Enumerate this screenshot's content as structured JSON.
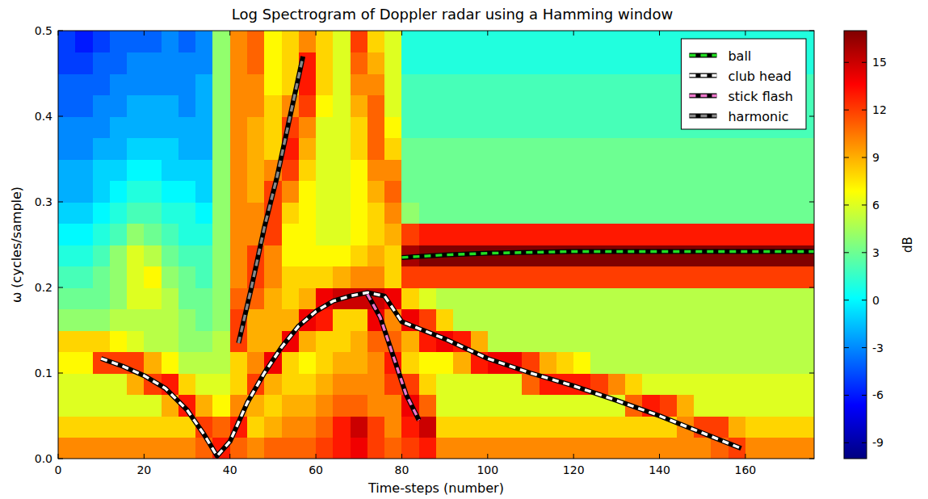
{
  "chart_data": {
    "type": "heatmap",
    "title": "Log Spectrogram of Doppler radar using a Hamming window",
    "x_label": "Time-steps (number)",
    "y_label": "ω  (cycles/sample)",
    "xlim": [
      0,
      176
    ],
    "xticks": [
      0,
      20,
      40,
      60,
      80,
      100,
      120,
      140,
      160
    ],
    "ylim": [
      0,
      0.5
    ],
    "yticks": [
      {
        "value": 0,
        "label": "0.0"
      },
      0.1,
      0.2,
      0.3,
      0.4,
      0.5
    ],
    "legend": "upper right",
    "colorbar": {
      "label": "dB",
      "range": [
        -10,
        17
      ],
      "ticks": [
        -9,
        -6,
        -3,
        0,
        3,
        6,
        9,
        12,
        15
      ]
    },
    "cells": {
      "x_bins": [
        0,
        4,
        8,
        12,
        16,
        20,
        24,
        28,
        32,
        36,
        40,
        44,
        48,
        52,
        56,
        60,
        64,
        68,
        72,
        76,
        80,
        84,
        88,
        92,
        96,
        100,
        104,
        108,
        112,
        116,
        120,
        124,
        128,
        132,
        136,
        140,
        144,
        148,
        152,
        156,
        160,
        164,
        168,
        172,
        176
      ],
      "y_bins": [
        0,
        0.025,
        0.05,
        0.075,
        0.1,
        0.125,
        0.15,
        0.175,
        0.2,
        0.225,
        0.25,
        0.275,
        0.3,
        0.325,
        0.35,
        0.375,
        0.4,
        0.425,
        0.45,
        0.475,
        0.5
      ],
      "values": [
        [
          10,
          10,
          10,
          10,
          10,
          10,
          10,
          10,
          11,
          13,
          11,
          10,
          11,
          11,
          11,
          12,
          13,
          14,
          12,
          11,
          12,
          13,
          10,
          10,
          10,
          10,
          10,
          10,
          10,
          10,
          10,
          10,
          10,
          10,
          10,
          10,
          10,
          10,
          11,
          12,
          10,
          10,
          10,
          10
        ],
        [
          8,
          8,
          8,
          8,
          8,
          8,
          8,
          8,
          12,
          11,
          13,
          8,
          9,
          10,
          10,
          11,
          13,
          15,
          12,
          10,
          13,
          15,
          8,
          8,
          8,
          8,
          8,
          8,
          8,
          8,
          8,
          8,
          8,
          8,
          8,
          8,
          10,
          12,
          12,
          9,
          8,
          8,
          8,
          8
        ],
        [
          6,
          6,
          6,
          6,
          6,
          6,
          9,
          13,
          9,
          7,
          10,
          9,
          8,
          9,
          9,
          10,
          11,
          11,
          10,
          10,
          14,
          11,
          6,
          6,
          6,
          6,
          6,
          6,
          6,
          6,
          6,
          6,
          6,
          11,
          13,
          12,
          9,
          6,
          6,
          6,
          6,
          6,
          6,
          6
        ],
        [
          6,
          6,
          6,
          6,
          9,
          12,
          13,
          8,
          6,
          6,
          8,
          12,
          9,
          8,
          8,
          9,
          10,
          10,
          10,
          12,
          12,
          8,
          6,
          6,
          6,
          6,
          6,
          11,
          13,
          13,
          13,
          12,
          10,
          8,
          6,
          6,
          6,
          6,
          6,
          6,
          6,
          6,
          6,
          6
        ],
        [
          7,
          7,
          12,
          12,
          12,
          9,
          7,
          5,
          5,
          5,
          8,
          10,
          14,
          8,
          7,
          8,
          9,
          9,
          10,
          13,
          8,
          7,
          7,
          9,
          13,
          14,
          14,
          12,
          9,
          8,
          7,
          5,
          5,
          5,
          5,
          5,
          5,
          5,
          5,
          5,
          5,
          5,
          5,
          5
        ],
        [
          8,
          8,
          8,
          7,
          6,
          5,
          5,
          4,
          4,
          5,
          12,
          9,
          9,
          14,
          9,
          8,
          8,
          9,
          11,
          11,
          9,
          13,
          14,
          13,
          9,
          5,
          5,
          5,
          5,
          5,
          5,
          5,
          5,
          5,
          5,
          5,
          5,
          5,
          5,
          5,
          5,
          5,
          5,
          5
        ],
        [
          4,
          4,
          4,
          5,
          5,
          5,
          5,
          4,
          3,
          4,
          12,
          9,
          9,
          9,
          14,
          13,
          8,
          8,
          14,
          10,
          14,
          12,
          8,
          5,
          5,
          5,
          5,
          5,
          5,
          5,
          5,
          5,
          5,
          5,
          5,
          5,
          5,
          5,
          5,
          5,
          5,
          5,
          5,
          5
        ],
        [
          3,
          3,
          3,
          4,
          6,
          6,
          5,
          3,
          3,
          4,
          11,
          11,
          9,
          8,
          9,
          14,
          15,
          15,
          15,
          14,
          8,
          6,
          5,
          5,
          5,
          5,
          5,
          5,
          5,
          5,
          5,
          5,
          5,
          5,
          5,
          5,
          5,
          5,
          5,
          5,
          5,
          5,
          5,
          5
        ],
        [
          2,
          2,
          3,
          4,
          6,
          7,
          4,
          3,
          2,
          4,
          10,
          12,
          10,
          8,
          8,
          8,
          9,
          10,
          10,
          8,
          12,
          12,
          12,
          12,
          12,
          12,
          12,
          12,
          12,
          12,
          12,
          12,
          12,
          12,
          12,
          12,
          12,
          12,
          12,
          12,
          12,
          12,
          12,
          12
        ],
        [
          1,
          1,
          2,
          4,
          6,
          5,
          3,
          2,
          2,
          4,
          10,
          12,
          10,
          7,
          7,
          7,
          7,
          8,
          9,
          8,
          16,
          17,
          17,
          17,
          17,
          17,
          17,
          17,
          17,
          17,
          17,
          17,
          17,
          17,
          17,
          17,
          17,
          17,
          17,
          17,
          17,
          17,
          17,
          17
        ],
        [
          0,
          0,
          1,
          2,
          4,
          3,
          2,
          1,
          1,
          4,
          10,
          10,
          12,
          7,
          7,
          6,
          6,
          7,
          8,
          9,
          12,
          13,
          13,
          13,
          13,
          13,
          13,
          13,
          13,
          13,
          13,
          13,
          13,
          13,
          13,
          13,
          13,
          13,
          13,
          13,
          13,
          13,
          13,
          13
        ],
        [
          -1,
          -1,
          0,
          1,
          2,
          2,
          1,
          1,
          0,
          4,
          10,
          10,
          12,
          8,
          7,
          6,
          6,
          7,
          8,
          10,
          4,
          3,
          3,
          3,
          3,
          3,
          3,
          3,
          3,
          3,
          3,
          3,
          3,
          3,
          3,
          3,
          3,
          3,
          3,
          3,
          3,
          3,
          3,
          3
        ],
        [
          -2,
          -2,
          -1,
          0,
          1,
          1,
          0,
          0,
          -1,
          4,
          10,
          9,
          12,
          10,
          7,
          6,
          6,
          7,
          9,
          11,
          3,
          3,
          3,
          3,
          3,
          3,
          3,
          3,
          3,
          3,
          3,
          3,
          3,
          3,
          3,
          3,
          3,
          3,
          3,
          3,
          3,
          3,
          3,
          3
        ],
        [
          -2,
          -2,
          -1,
          -1,
          0,
          0,
          -1,
          -1,
          -1,
          4,
          10,
          9,
          10,
          12,
          8,
          6,
          6,
          7,
          10,
          10,
          3,
          3,
          3,
          3,
          3,
          3,
          3,
          3,
          3,
          3,
          3,
          3,
          3,
          3,
          3,
          3,
          3,
          3,
          3,
          3,
          3,
          3,
          3,
          3
        ],
        [
          -3,
          -3,
          -2,
          -2,
          -1,
          -1,
          -1,
          -2,
          -2,
          4,
          10,
          9,
          8,
          13,
          9,
          6,
          6,
          8,
          11,
          8,
          3,
          3,
          3,
          3,
          3,
          3,
          3,
          3,
          3,
          3,
          3,
          3,
          3,
          3,
          3,
          3,
          3,
          3,
          3,
          3,
          3,
          3,
          3,
          3
        ],
        [
          -3,
          -3,
          -3,
          -2,
          -2,
          -2,
          -2,
          -2,
          -2,
          4,
          10,
          9,
          8,
          12,
          10,
          6,
          6,
          8,
          11,
          7,
          2,
          2,
          2,
          2,
          2,
          2,
          2,
          2,
          2,
          2,
          2,
          2,
          2,
          2,
          2,
          2,
          2,
          2,
          2,
          2,
          2,
          2,
          2,
          2
        ],
        [
          -4,
          -4,
          -3,
          -3,
          -2,
          -2,
          -2,
          -3,
          -2,
          4,
          10,
          10,
          8,
          10,
          12,
          7,
          6,
          9,
          11,
          6,
          2,
          2,
          2,
          2,
          2,
          2,
          2,
          2,
          2,
          2,
          2,
          2,
          2,
          2,
          2,
          2,
          2,
          2,
          2,
          2,
          2,
          2,
          2,
          2
        ],
        [
          -4,
          -4,
          -4,
          -3,
          -3,
          -3,
          -3,
          -3,
          -2,
          4,
          10,
          10,
          7,
          8,
          13,
          8,
          6,
          10,
          10,
          6,
          2,
          2,
          2,
          2,
          2,
          2,
          2,
          2,
          2,
          2,
          2,
          2,
          2,
          2,
          2,
          2,
          2,
          2,
          2,
          2,
          2,
          2,
          2,
          2
        ],
        [
          -5,
          -5,
          -4,
          -4,
          -3,
          -3,
          -3,
          -3,
          -3,
          4,
          10,
          11,
          7,
          8,
          13,
          8,
          6,
          11,
          9,
          6,
          1,
          1,
          1,
          1,
          1,
          1,
          1,
          1,
          1,
          1,
          1,
          1,
          1,
          1,
          1,
          1,
          1,
          1,
          1,
          1,
          1,
          1,
          1,
          1
        ],
        [
          -5,
          -6,
          -5,
          -4,
          -4,
          -4,
          -3,
          -4,
          -3,
          4,
          10,
          11,
          7,
          8,
          10,
          8,
          6,
          12,
          8,
          6,
          1,
          1,
          1,
          1,
          1,
          1,
          1,
          1,
          1,
          1,
          1,
          1,
          1,
          1,
          1,
          1,
          1,
          1,
          1,
          1,
          1,
          1,
          1,
          1
        ]
      ]
    },
    "series": [
      {
        "name": "ball",
        "color": "#22dd22",
        "line_style": "dashed",
        "x": [
          80,
          90,
          100,
          120,
          140,
          176
        ],
        "values": [
          0.235,
          0.238,
          0.24,
          0.242,
          0.242,
          0.242
        ]
      },
      {
        "name": "club head",
        "color": "#ffffff",
        "line_style": "dashed",
        "x": [
          10,
          15,
          20,
          25,
          30,
          34,
          37,
          40,
          44,
          48,
          52,
          56,
          60,
          64,
          68,
          72,
          76,
          80,
          90,
          100,
          110,
          120,
          130,
          140,
          150,
          159
        ],
        "values": [
          0.117,
          0.108,
          0.097,
          0.082,
          0.057,
          0.028,
          0.003,
          0.02,
          0.065,
          0.1,
          0.13,
          0.155,
          0.172,
          0.184,
          0.19,
          0.194,
          0.19,
          0.16,
          0.14,
          0.117,
          0.1,
          0.085,
          0.068,
          0.05,
          0.03,
          0.012
        ]
      },
      {
        "name": "stick flash",
        "color": "#ee77cc",
        "line_style": "dashed",
        "x": [
          72,
          75,
          78,
          81,
          84
        ],
        "values": [
          0.192,
          0.165,
          0.12,
          0.075,
          0.045
        ]
      },
      {
        "name": "harmonic",
        "color": "#888888",
        "line_style": "dashed",
        "x": [
          42,
          45,
          48,
          51,
          54,
          57
        ],
        "values": [
          0.135,
          0.2,
          0.27,
          0.33,
          0.4,
          0.47
        ]
      }
    ]
  }
}
